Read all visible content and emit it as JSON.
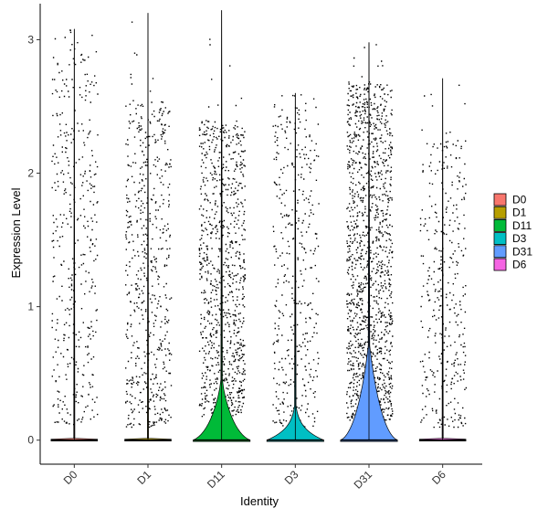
{
  "chart_data": {
    "type": "violin",
    "title": "",
    "xlabel": "Identity",
    "ylabel": "Expression Level",
    "ylim": [
      -0.18,
      3.27
    ],
    "yticks": [
      0,
      1,
      2,
      3
    ],
    "categories": [
      "D0",
      "D1",
      "D11",
      "D3",
      "D31",
      "D6"
    ],
    "colors": {
      "D0": "#F8766D",
      "D1": "#B79F00",
      "D11": "#00BA38",
      "D3": "#00BFC4",
      "D31": "#619CFF",
      "D6": "#F564E3"
    },
    "series": [
      {
        "name": "D0",
        "max": 3.08,
        "point_density": 0.45,
        "y_range": [
          0.12,
          2.95
        ],
        "zero_bulge": 0.0
      },
      {
        "name": "D1",
        "max": 3.2,
        "point_density": 0.65,
        "y_range": [
          0.1,
          2.55
        ],
        "zero_bulge": 0.0
      },
      {
        "name": "D11",
        "max": 3.22,
        "point_density": 1.0,
        "y_range": [
          0.18,
          2.4
        ],
        "zero_bulge": 0.12
      },
      {
        "name": "D3",
        "max": 2.6,
        "point_density": 0.45,
        "y_range": [
          0.1,
          2.5
        ],
        "zero_bulge": 0.06
      },
      {
        "name": "D31",
        "max": 2.98,
        "point_density": 1.5,
        "y_range": [
          0.15,
          2.7
        ],
        "zero_bulge": 0.2
      },
      {
        "name": "D6",
        "max": 2.71,
        "point_density": 0.4,
        "y_range": [
          0.1,
          2.25
        ],
        "zero_bulge": 0.0
      }
    ],
    "legend": {
      "position": "right",
      "entries": [
        "D0",
        "D1",
        "D11",
        "D3",
        "D31",
        "D6"
      ]
    },
    "grid": false
  }
}
